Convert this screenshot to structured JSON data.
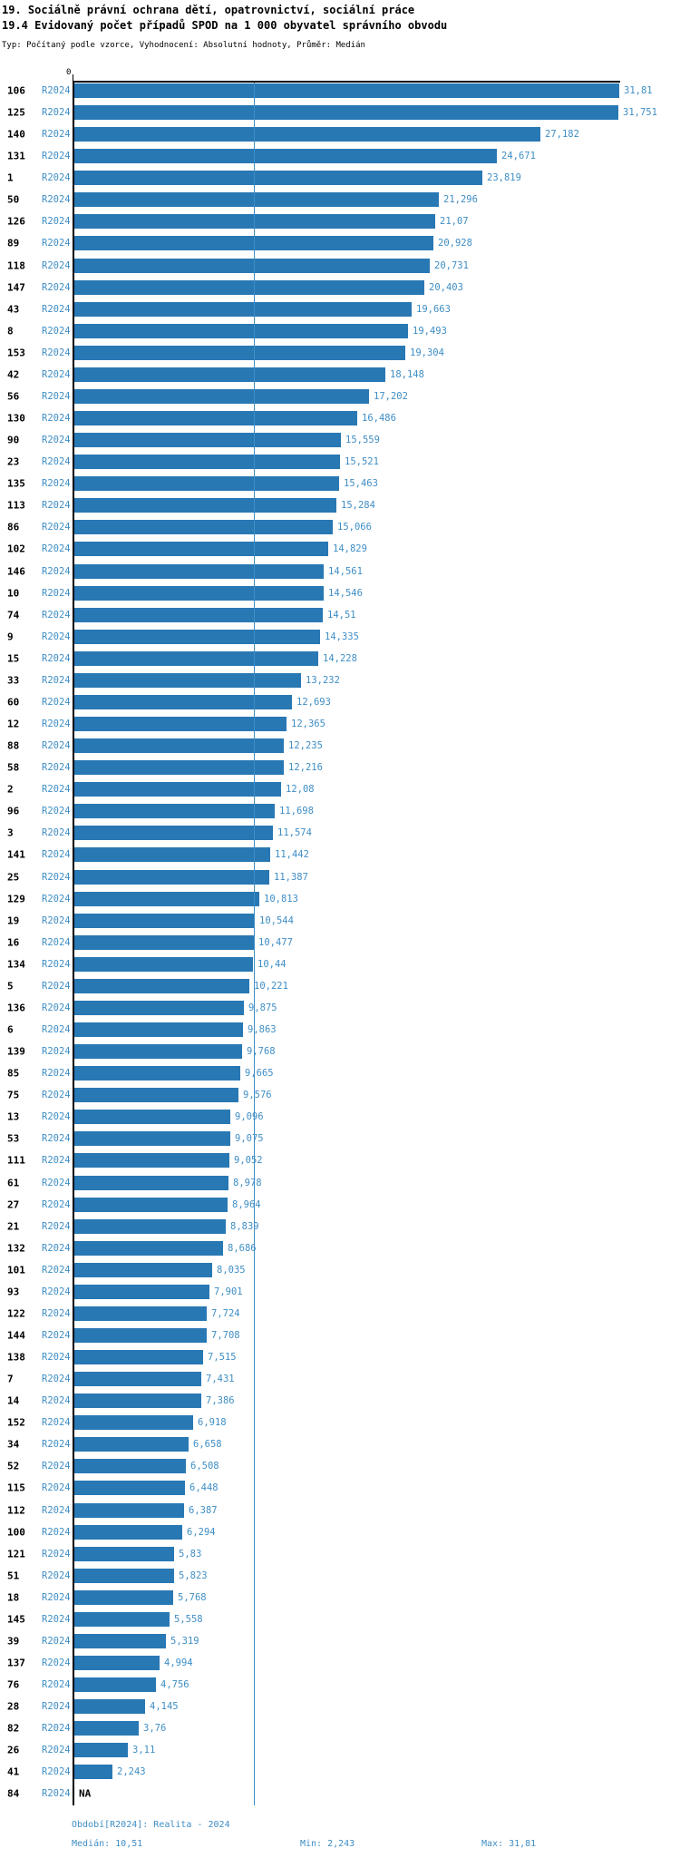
{
  "title": {
    "line1": "19. Sociálně právní ochrana dětí, opatrovnictví, sociální práce",
    "line2": "19.4 Evidovaný počet případů SPOD na 1 000 obyvatel správního obvodu",
    "line3": "Typ: Počítaný podle vzorce, Vyhodnocení: Absolutní hodnoty, Průměr: Medián"
  },
  "axis": {
    "zero_label": "0"
  },
  "chart_data": {
    "type": "bar",
    "orientation": "horizontal",
    "value_axis_min": 0,
    "value_axis_max": 31.81,
    "median": 10.51,
    "period_label": "R2024",
    "na_label": "NA",
    "rows": [
      {
        "id": "106",
        "value": 31.81,
        "label": "31,81"
      },
      {
        "id": "125",
        "value": 31.751,
        "label": "31,751"
      },
      {
        "id": "140",
        "value": 27.182,
        "label": "27,182"
      },
      {
        "id": "131",
        "value": 24.671,
        "label": "24,671"
      },
      {
        "id": "1",
        "value": 23.819,
        "label": "23,819"
      },
      {
        "id": "50",
        "value": 21.296,
        "label": "21,296"
      },
      {
        "id": "126",
        "value": 21.07,
        "label": "21,07"
      },
      {
        "id": "89",
        "value": 20.928,
        "label": "20,928"
      },
      {
        "id": "118",
        "value": 20.731,
        "label": "20,731"
      },
      {
        "id": "147",
        "value": 20.403,
        "label": "20,403"
      },
      {
        "id": "43",
        "value": 19.663,
        "label": "19,663"
      },
      {
        "id": "8",
        "value": 19.493,
        "label": "19,493"
      },
      {
        "id": "153",
        "value": 19.304,
        "label": "19,304"
      },
      {
        "id": "42",
        "value": 18.148,
        "label": "18,148"
      },
      {
        "id": "56",
        "value": 17.202,
        "label": "17,202"
      },
      {
        "id": "130",
        "value": 16.486,
        "label": "16,486"
      },
      {
        "id": "90",
        "value": 15.559,
        "label": "15,559"
      },
      {
        "id": "23",
        "value": 15.521,
        "label": "15,521"
      },
      {
        "id": "135",
        "value": 15.463,
        "label": "15,463"
      },
      {
        "id": "113",
        "value": 15.284,
        "label": "15,284"
      },
      {
        "id": "86",
        "value": 15.066,
        "label": "15,066"
      },
      {
        "id": "102",
        "value": 14.829,
        "label": "14,829"
      },
      {
        "id": "146",
        "value": 14.561,
        "label": "14,561"
      },
      {
        "id": "10",
        "value": 14.546,
        "label": "14,546"
      },
      {
        "id": "74",
        "value": 14.51,
        "label": "14,51"
      },
      {
        "id": "9",
        "value": 14.335,
        "label": "14,335"
      },
      {
        "id": "15",
        "value": 14.228,
        "label": "14,228"
      },
      {
        "id": "33",
        "value": 13.232,
        "label": "13,232"
      },
      {
        "id": "60",
        "value": 12.693,
        "label": "12,693"
      },
      {
        "id": "12",
        "value": 12.365,
        "label": "12,365"
      },
      {
        "id": "88",
        "value": 12.235,
        "label": "12,235"
      },
      {
        "id": "58",
        "value": 12.216,
        "label": "12,216"
      },
      {
        "id": "2",
        "value": 12.08,
        "label": "12,08"
      },
      {
        "id": "96",
        "value": 11.698,
        "label": "11,698"
      },
      {
        "id": "3",
        "value": 11.574,
        "label": "11,574"
      },
      {
        "id": "141",
        "value": 11.442,
        "label": "11,442"
      },
      {
        "id": "25",
        "value": 11.387,
        "label": "11,387"
      },
      {
        "id": "129",
        "value": 10.813,
        "label": "10,813"
      },
      {
        "id": "19",
        "value": 10.544,
        "label": "10,544"
      },
      {
        "id": "16",
        "value": 10.477,
        "label": "10,477"
      },
      {
        "id": "134",
        "value": 10.44,
        "label": "10,44"
      },
      {
        "id": "5",
        "value": 10.221,
        "label": "10,221"
      },
      {
        "id": "136",
        "value": 9.875,
        "label": "9,875"
      },
      {
        "id": "6",
        "value": 9.863,
        "label": "9,863"
      },
      {
        "id": "139",
        "value": 9.768,
        "label": "9,768"
      },
      {
        "id": "85",
        "value": 9.665,
        "label": "9,665"
      },
      {
        "id": "75",
        "value": 9.576,
        "label": "9,576"
      },
      {
        "id": "13",
        "value": 9.096,
        "label": "9,096"
      },
      {
        "id": "53",
        "value": 9.075,
        "label": "9,075"
      },
      {
        "id": "111",
        "value": 9.052,
        "label": "9,052"
      },
      {
        "id": "61",
        "value": 8.978,
        "label": "8,978"
      },
      {
        "id": "27",
        "value": 8.964,
        "label": "8,964"
      },
      {
        "id": "21",
        "value": 8.839,
        "label": "8,839"
      },
      {
        "id": "132",
        "value": 8.686,
        "label": "8,686"
      },
      {
        "id": "101",
        "value": 8.035,
        "label": "8,035"
      },
      {
        "id": "93",
        "value": 7.901,
        "label": "7,901"
      },
      {
        "id": "122",
        "value": 7.724,
        "label": "7,724"
      },
      {
        "id": "144",
        "value": 7.708,
        "label": "7,708"
      },
      {
        "id": "138",
        "value": 7.515,
        "label": "7,515"
      },
      {
        "id": "7",
        "value": 7.431,
        "label": "7,431"
      },
      {
        "id": "14",
        "value": 7.386,
        "label": "7,386"
      },
      {
        "id": "152",
        "value": 6.918,
        "label": "6,918"
      },
      {
        "id": "34",
        "value": 6.658,
        "label": "6,658"
      },
      {
        "id": "52",
        "value": 6.508,
        "label": "6,508"
      },
      {
        "id": "115",
        "value": 6.448,
        "label": "6,448"
      },
      {
        "id": "112",
        "value": 6.387,
        "label": "6,387"
      },
      {
        "id": "100",
        "value": 6.294,
        "label": "6,294"
      },
      {
        "id": "121",
        "value": 5.83,
        "label": "5,83"
      },
      {
        "id": "51",
        "value": 5.823,
        "label": "5,823"
      },
      {
        "id": "18",
        "value": 5.768,
        "label": "5,768"
      },
      {
        "id": "145",
        "value": 5.558,
        "label": "5,558"
      },
      {
        "id": "39",
        "value": 5.319,
        "label": "5,319"
      },
      {
        "id": "137",
        "value": 4.994,
        "label": "4,994"
      },
      {
        "id": "76",
        "value": 4.756,
        "label": "4,756"
      },
      {
        "id": "28",
        "value": 4.145,
        "label": "4,145"
      },
      {
        "id": "82",
        "value": 3.76,
        "label": "3,76"
      },
      {
        "id": "26",
        "value": 3.11,
        "label": "3,11"
      },
      {
        "id": "41",
        "value": 2.243,
        "label": "2,243"
      },
      {
        "id": "84",
        "value": null,
        "label": "NA"
      }
    ]
  },
  "footer": {
    "period": "Období[R2024]: Realita - 2024",
    "median": "Medián: 10,51",
    "min": "Min: 2,243",
    "max": "Max: 31,81"
  },
  "colors": {
    "bar": "#2878b4",
    "text_blue": "#3f8ec5",
    "median_line": "#3f8ec5",
    "text_black": "#000000"
  }
}
